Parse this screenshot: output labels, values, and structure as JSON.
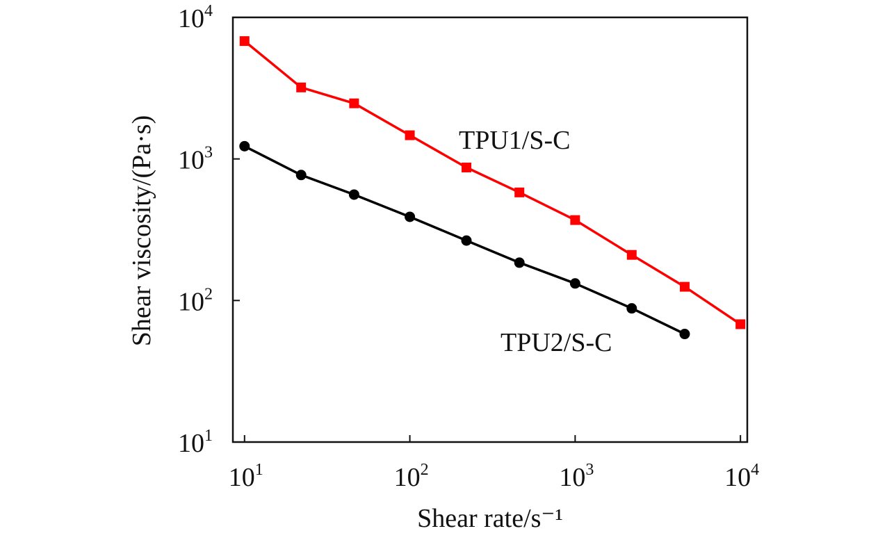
{
  "chart_data": {
    "type": "line",
    "xscale": "log",
    "yscale": "log",
    "xlabel": "Shear rate/s⁻¹",
    "ylabel": "Shear viscosity/(Pa·s)",
    "xlim": [
      8.5,
      11000
    ],
    "ylim": [
      10,
      10000
    ],
    "grid": false,
    "xticks": [
      {
        "value": 10,
        "base": "10",
        "exp": "1"
      },
      {
        "value": 100,
        "base": "10",
        "exp": "2"
      },
      {
        "value": 1000,
        "base": "10",
        "exp": "3"
      },
      {
        "value": 10000,
        "base": "10",
        "exp": "4"
      }
    ],
    "yticks": [
      {
        "value": 10,
        "base": "10",
        "exp": "1"
      },
      {
        "value": 100,
        "base": "10",
        "exp": "2"
      },
      {
        "value": 1000,
        "base": "10",
        "exp": "3"
      },
      {
        "value": 10000,
        "base": "10",
        "exp": "4"
      }
    ],
    "series": [
      {
        "name": "TPU1/S-C",
        "color": "#ff0000",
        "marker": "square",
        "x": [
          10,
          22,
          46,
          100,
          220,
          460,
          1000,
          2200,
          4600,
          10000
        ],
        "y": [
          6800,
          3200,
          2470,
          1470,
          870,
          580,
          370,
          210,
          125,
          68
        ]
      },
      {
        "name": "TPU2/S-C",
        "color": "#000000",
        "marker": "circle",
        "x": [
          10,
          22,
          46,
          100,
          220,
          460,
          1000,
          2200,
          4600
        ],
        "y": [
          1230,
          770,
          560,
          390,
          265,
          185,
          132,
          88,
          58
        ]
      }
    ]
  }
}
